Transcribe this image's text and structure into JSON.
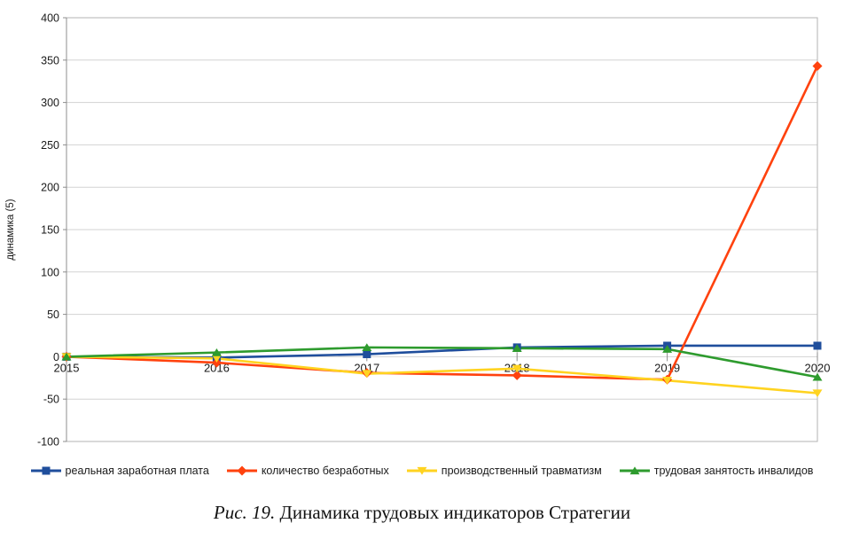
{
  "figure": {
    "caption_prefix": "Рис. 19.",
    "caption_text": " Динамика трудовых индикаторов Стратегии"
  },
  "chart_data": {
    "type": "line",
    "title": "",
    "xlabel": "",
    "ylabel": "динамика (5)",
    "x": [
      "2015",
      "2016",
      "2017",
      "2018",
      "2019",
      "2020"
    ],
    "ylim": [
      -100,
      400
    ],
    "ytick_step": 50,
    "yticks": [
      400,
      350,
      300,
      250,
      200,
      150,
      100,
      50,
      0,
      -50,
      -100
    ],
    "grid": "horizontal",
    "legend_position": "bottom",
    "series": [
      {
        "name": "реальная заработная плата",
        "color": "#1F4E9C",
        "marker": "square",
        "values": [
          0,
          -1,
          3,
          11,
          13,
          13
        ]
      },
      {
        "name": "количество  безработных",
        "color": "#FF420E",
        "marker": "diamond",
        "values": [
          0,
          -7,
          -19,
          -22,
          -27,
          343
        ]
      },
      {
        "name": "производственный травматизм",
        "color": "#FFD320",
        "marker": "triangle-down",
        "values": [
          0,
          -2,
          -20,
          -14,
          -28,
          -43
        ]
      },
      {
        "name": "трудовая занятость инвалидов",
        "color": "#2E9B2E",
        "marker": "triangle-up",
        "values": [
          0,
          5,
          11,
          10,
          9,
          -24
        ]
      }
    ]
  }
}
